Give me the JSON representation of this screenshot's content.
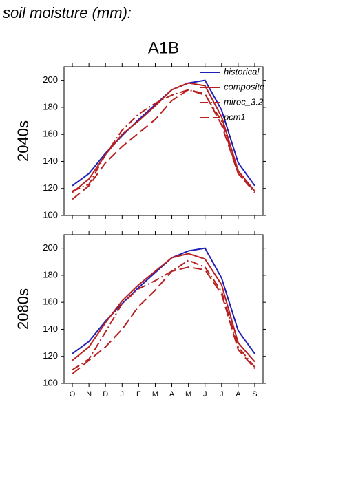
{
  "heading": "soil moisture (mm):",
  "chart_data": [
    {
      "type": "line",
      "title": "A1B",
      "ylabel": "2040s",
      "legend": true,
      "categories": [
        "O",
        "N",
        "D",
        "J",
        "F",
        "M",
        "A",
        "M",
        "J",
        "J",
        "A",
        "S"
      ],
      "ylim": [
        100,
        210
      ],
      "yticks": [
        100,
        120,
        140,
        160,
        180,
        200
      ],
      "show_xlabels": false,
      "series": [
        {
          "name": "historical",
          "color": "#2020b8",
          "dash": "solid",
          "values": [
            122,
            131,
            146,
            159,
            171,
            182,
            193,
            198,
            200,
            178,
            139,
            122
          ]
        },
        {
          "name": "composite",
          "color": "#b82020",
          "dash": "solid",
          "values": [
            117,
            127,
            145,
            160,
            170,
            181,
            193,
            198,
            196,
            173,
            133,
            118
          ]
        },
        {
          "name": "miroc_3.2",
          "color": "#b82020",
          "dash": "dashdot",
          "values": [
            118,
            123,
            145,
            163,
            175,
            183,
            189,
            193,
            189,
            170,
            131,
            117
          ]
        },
        {
          "name": "pcm1",
          "color": "#b82020",
          "dash": "longdash",
          "values": [
            112,
            122,
            139,
            151,
            161,
            171,
            185,
            193,
            190,
            167,
            131,
            118
          ]
        }
      ]
    },
    {
      "type": "line",
      "ylabel": "2080s",
      "legend": false,
      "categories": [
        "O",
        "N",
        "D",
        "J",
        "F",
        "M",
        "A",
        "M",
        "J",
        "J",
        "A",
        "S"
      ],
      "ylim": [
        100,
        210
      ],
      "yticks": [
        100,
        120,
        140,
        160,
        180,
        200
      ],
      "show_xlabels": true,
      "series": [
        {
          "color": "#2020b8",
          "dash": "solid",
          "values": [
            122,
            131,
            146,
            159,
            171,
            182,
            193,
            198,
            200,
            178,
            139,
            122
          ]
        },
        {
          "color": "#b82020",
          "dash": "solid",
          "values": [
            117,
            127,
            145,
            161,
            173,
            183,
            193,
            196,
            192,
            173,
            130,
            116
          ]
        },
        {
          "color": "#b82020",
          "dash": "dashdot",
          "values": [
            110,
            118,
            138,
            159,
            170,
            176,
            183,
            191,
            186,
            168,
            127,
            112
          ]
        },
        {
          "color": "#b82020",
          "dash": "longdash",
          "values": [
            107,
            117,
            127,
            140,
            157,
            169,
            183,
            186,
            184,
            166,
            125,
            111
          ]
        }
      ]
    }
  ]
}
